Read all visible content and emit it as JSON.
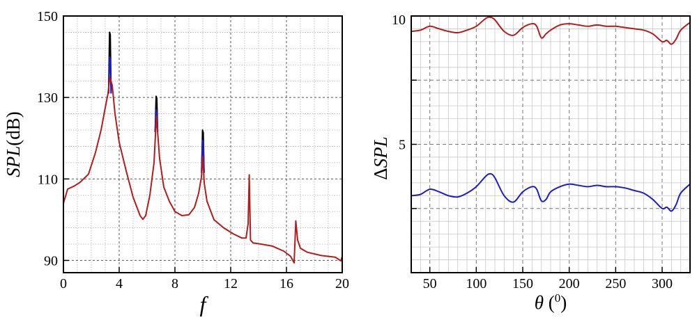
{
  "chart_data": [
    {
      "type": "line",
      "xlabel": "f",
      "ylabel": "SPL(dB)",
      "xlim": [
        0,
        20
      ],
      "ylim": [
        87,
        150
      ],
      "x_ticks": [
        0,
        4,
        8,
        12,
        16,
        20
      ],
      "x_tick_labels": [
        "0",
        "4",
        "8",
        "12",
        "16",
        "20"
      ],
      "y_ticks": [
        90,
        110,
        130,
        150
      ],
      "y_tick_labels": [
        "90",
        "110",
        "130",
        "150"
      ],
      "grid": true,
      "colors": [
        "#000000",
        "#1c1cc8",
        "#b41c1c"
      ],
      "series": [
        {
          "name": "black",
          "color": "#000000",
          "peaks": [
            {
              "x": 3.33,
              "y": 146
            },
            {
              "x": 6.67,
              "y": 130.3
            },
            {
              "x": 10.0,
              "y": 122
            },
            {
              "x": 13.33,
              "y": 111
            },
            {
              "x": 16.67,
              "y": 99.7
            }
          ]
        },
        {
          "name": "blue",
          "color": "#1c1cc8",
          "peaks": [
            {
              "x": 3.33,
              "y": 140
            },
            {
              "x": 6.67,
              "y": 127
            },
            {
              "x": 10.0,
              "y": 119.5
            },
            {
              "x": 13.33,
              "y": 111
            },
            {
              "x": 16.67,
              "y": 99.7
            }
          ]
        },
        {
          "name": "red",
          "color": "#b41c1c",
          "x": [
            0,
            0.3,
            0.8,
            1.2,
            1.8,
            2.3,
            2.7,
            3.0,
            3.2,
            3.33,
            3.5,
            3.7,
            4.0,
            4.5,
            5.0,
            5.5,
            5.7,
            5.9,
            6.2,
            6.5,
            6.67,
            6.9,
            7.2,
            7.6,
            8.0,
            8.5,
            9.0,
            9.4,
            9.7,
            9.9,
            10.0,
            10.1,
            10.3,
            10.8,
            11.5,
            12.2,
            12.8,
            13.1,
            13.25,
            13.33,
            13.42,
            13.6,
            14.2,
            15.0,
            15.8,
            16.3,
            16.55,
            16.67,
            16.8,
            17.0,
            17.5,
            18.5,
            19.5,
            19.9,
            20.0
          ],
          "y": [
            104,
            107.5,
            108.3,
            109.2,
            111.2,
            116.5,
            122,
            127.5,
            131,
            135,
            133,
            126,
            119,
            112,
            105.5,
            101,
            100.1,
            101,
            106,
            114,
            125.5,
            115,
            108,
            104.5,
            102,
            101,
            101.2,
            103,
            106.5,
            110.5,
            115.5,
            109,
            104.5,
            100,
            98,
            96.5,
            95.5,
            95.5,
            99,
            111,
            95,
            94.3,
            94,
            93.5,
            92.3,
            91,
            89.4,
            99.7,
            95,
            93,
            92,
            91.2,
            90.8,
            89.9,
            91
          ]
        }
      ]
    },
    {
      "type": "line",
      "xlabel": "θ (0)",
      "xlabel_main": "θ (",
      "xlabel_sup": "0",
      "xlabel_close": ")",
      "ylabel": "ΔSPL",
      "ylabel_delta": "Δ",
      "ylabel_main": "SPL",
      "xlim": [
        30,
        330
      ],
      "ylim": [
        0,
        10
      ],
      "x_ticks": [
        50,
        100,
        150,
        200,
        250,
        300
      ],
      "x_tick_labels": [
        "50",
        "100",
        "150",
        "200",
        "250",
        "300"
      ],
      "y_ticks": [
        5,
        10
      ],
      "y_tick_labels": [
        "5",
        "10"
      ],
      "grid": true,
      "series": [
        {
          "name": "red",
          "color": "#b41c1c",
          "x": [
            30,
            40,
            50,
            60,
            70,
            80,
            90,
            100,
            110,
            115,
            120,
            130,
            140,
            150,
            160,
            165,
            170,
            175,
            180,
            190,
            200,
            210,
            220,
            230,
            240,
            250,
            260,
            270,
            280,
            290,
            300,
            305,
            310,
            315,
            320,
            330
          ],
          "y": [
            9.4,
            9.45,
            9.6,
            9.5,
            9.4,
            9.35,
            9.45,
            9.6,
            9.9,
            9.95,
            9.85,
            9.4,
            9.25,
            9.55,
            9.7,
            9.6,
            9.15,
            9.3,
            9.45,
            9.65,
            9.7,
            9.65,
            9.6,
            9.65,
            9.6,
            9.6,
            9.55,
            9.5,
            9.45,
            9.3,
            9.0,
            9.05,
            8.9,
            9.1,
            9.45,
            9.75
          ]
        },
        {
          "name": "blue",
          "color": "#1c1cc8",
          "x": [
            30,
            40,
            50,
            60,
            70,
            80,
            90,
            100,
            110,
            115,
            120,
            130,
            140,
            150,
            160,
            165,
            170,
            175,
            180,
            190,
            200,
            210,
            220,
            230,
            240,
            250,
            260,
            270,
            280,
            290,
            300,
            305,
            310,
            315,
            320,
            330
          ],
          "y": [
            3.0,
            3.05,
            3.25,
            3.15,
            3.0,
            2.95,
            3.1,
            3.35,
            3.75,
            3.85,
            3.7,
            3.0,
            2.75,
            3.15,
            3.35,
            3.25,
            2.8,
            2.85,
            3.15,
            3.35,
            3.45,
            3.4,
            3.35,
            3.4,
            3.35,
            3.35,
            3.3,
            3.2,
            3.1,
            2.85,
            2.5,
            2.55,
            2.4,
            2.65,
            3.1,
            3.45
          ]
        }
      ]
    }
  ]
}
